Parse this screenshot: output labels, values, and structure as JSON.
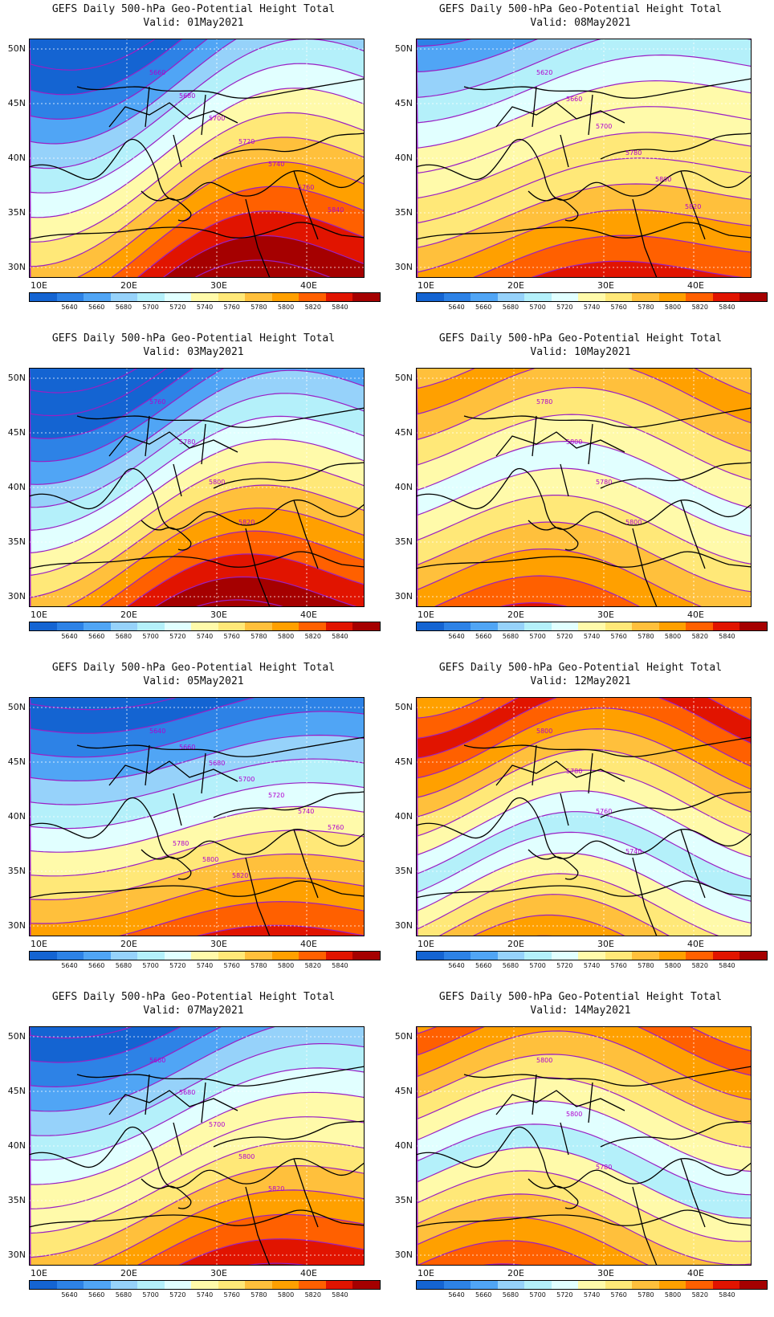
{
  "legend": {
    "colors": [
      "#1464d2",
      "#2d82e6",
      "#50a5f5",
      "#96d2fa",
      "#b4f0fa",
      "#e1ffff",
      "#fffaaa",
      "#ffe878",
      "#ffc03c",
      "#ffa000",
      "#ff6000",
      "#e11400",
      "#a50000"
    ],
    "labels": [
      "5640",
      "5660",
      "5680",
      "5700",
      "5720",
      "5740",
      "5760",
      "5780",
      "5800",
      "5820",
      "5840"
    ]
  },
  "axes": {
    "lat_labels": [
      "50N",
      "45N",
      "40N",
      "35N",
      "30N"
    ],
    "lon_labels": [
      "10E",
      "20E",
      "30E",
      "40E"
    ]
  },
  "panels": [
    {
      "title": "GEFS Daily 500-hPa Geo-Potential Height Total",
      "valid": "Valid: 01May2021",
      "contour_labels": [
        "5660",
        "5680",
        "5700",
        "5720",
        "5740",
        "5760",
        "5840"
      ]
    },
    {
      "title": "GEFS Daily 500-hPa Geo-Potential Height Total",
      "valid": "Valid: 08May2021",
      "contour_labels": [
        "5620",
        "5660",
        "5700",
        "5780",
        "5800",
        "5820"
      ]
    },
    {
      "title": "GEFS Daily 500-hPa Geo-Potential Height Total",
      "valid": "Valid: 03May2021",
      "contour_labels": [
        "5760",
        "5780",
        "5800",
        "5820"
      ]
    },
    {
      "title": "GEFS Daily 500-hPa Geo-Potential Height Total",
      "valid": "Valid: 10May2021",
      "contour_labels": [
        "5780",
        "5800",
        "5780",
        "5800"
      ]
    },
    {
      "title": "GEFS Daily 500-hPa Geo-Potential Height Total",
      "valid": "Valid: 05May2021",
      "contour_labels": [
        "5640",
        "5660",
        "5680",
        "5700",
        "5720",
        "5740",
        "5760",
        "5780",
        "5800",
        "5820"
      ]
    },
    {
      "title": "GEFS Daily 500-hPa Geo-Potential Height Total",
      "valid": "Valid: 12May2021",
      "contour_labels": [
        "5800",
        "5780",
        "5760",
        "5740"
      ]
    },
    {
      "title": "GEFS Daily 500-hPa Geo-Potential Height Total",
      "valid": "Valid: 07May2021",
      "contour_labels": [
        "5660",
        "5680",
        "5700",
        "5800",
        "5820"
      ]
    },
    {
      "title": "GEFS Daily 500-hPa Geo-Potential Height Total",
      "valid": "Valid: 14May2021",
      "contour_labels": [
        "5800",
        "5800",
        "5780"
      ]
    }
  ]
}
